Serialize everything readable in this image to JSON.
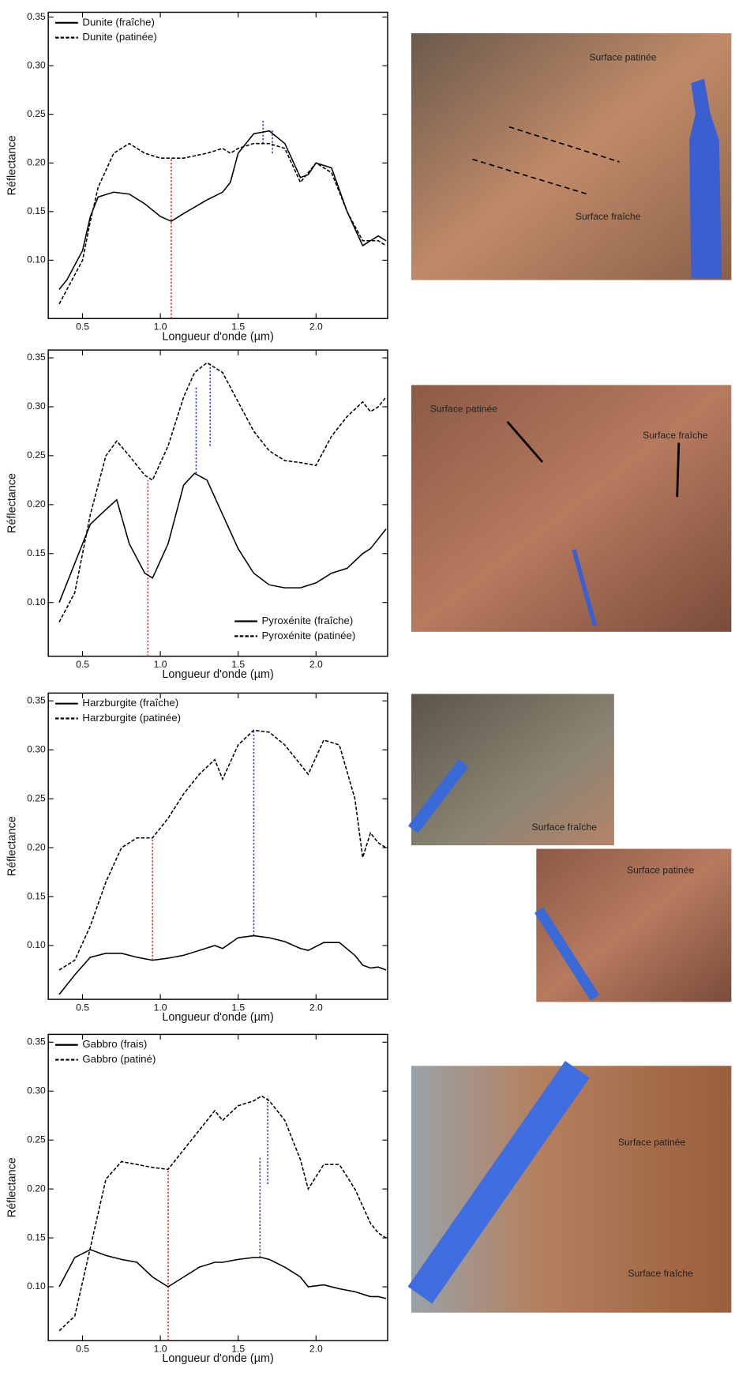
{
  "chart_data": [
    {
      "type": "line",
      "xlabel": "Longueur d'onde (µm)",
      "ylabel": "Réflectance",
      "legend": "upper left",
      "xlim": [
        0.28,
        2.46
      ],
      "ylim": [
        0.04,
        0.355
      ],
      "xticks": [
        0.5,
        {
          "value": 1.0,
          "label": "1.0"
        },
        1.5,
        {
          "value": 2.0,
          "label": "2.0"
        }
      ],
      "yticks": [
        {
          "value": 0.1,
          "label": "0.10"
        },
        {
          "value": 0.15,
          "label": "0.15"
        },
        {
          "value": 0.2,
          "label": "0.20"
        },
        {
          "value": 0.25,
          "label": "0.25"
        },
        {
          "value": 0.3,
          "label": "0.30"
        },
        {
          "value": 0.35,
          "label": "0.35"
        }
      ],
      "x": [
        0.35,
        0.4,
        0.5,
        0.55,
        0.6,
        0.7,
        0.8,
        0.9,
        1.0,
        1.07,
        1.15,
        1.3,
        1.4,
        1.45,
        1.5,
        1.6,
        1.7,
        1.8,
        1.9,
        1.95,
        2.0,
        2.1,
        2.2,
        2.3,
        2.35,
        2.4,
        2.45
      ],
      "series": [
        {
          "name": "Dunite (fraîche)",
          "color": "#000000",
          "dashed": false,
          "values": [
            0.07,
            0.08,
            0.11,
            0.145,
            0.165,
            0.17,
            0.168,
            0.158,
            0.145,
            0.14,
            0.148,
            0.162,
            0.17,
            0.18,
            0.21,
            0.23,
            0.233,
            0.22,
            0.185,
            0.188,
            0.2,
            0.195,
            0.15,
            0.115,
            0.12,
            0.125,
            0.12
          ]
        },
        {
          "name": "Dunite (patinée)",
          "color": "#000000",
          "dashed": true,
          "values": [
            0.055,
            0.07,
            0.1,
            0.14,
            0.175,
            0.21,
            0.22,
            0.21,
            0.205,
            0.205,
            0.205,
            0.21,
            0.215,
            0.21,
            0.215,
            0.22,
            0.22,
            0.215,
            0.18,
            0.19,
            0.2,
            0.19,
            0.15,
            0.12,
            0.12,
            0.12,
            0.115
          ]
        }
      ],
      "markers": [
        {
          "x": 1.07,
          "y": [
            0.04,
            0.205
          ],
          "color": "#e03030"
        },
        {
          "x": 1.66,
          "y": [
            0.22,
            0.245
          ],
          "color": "#3040e0"
        },
        {
          "x": 1.72,
          "y": [
            0.21,
            0.235
          ],
          "color": "#3040e0"
        }
      ]
    },
    {
      "type": "line",
      "xlabel": "Longueur d'onde (µm)",
      "ylabel": "Réflectance",
      "legend": "lower right",
      "xlim": [
        0.28,
        2.46
      ],
      "ylim": [
        0.045,
        0.358
      ],
      "xticks": [
        0.5,
        {
          "value": 1.0,
          "label": "1.0"
        },
        1.5,
        {
          "value": 2.0,
          "label": "2.0"
        }
      ],
      "yticks": [
        {
          "value": 0.1,
          "label": "0.10"
        },
        {
          "value": 0.15,
          "label": "0.15"
        },
        {
          "value": 0.2,
          "label": "0.20"
        },
        {
          "value": 0.25,
          "label": "0.25"
        },
        {
          "value": 0.3,
          "label": "0.30"
        },
        {
          "value": 0.35,
          "label": "0.35"
        }
      ],
      "x": [
        0.35,
        0.45,
        0.55,
        0.65,
        0.72,
        0.8,
        0.9,
        0.95,
        1.05,
        1.15,
        1.22,
        1.3,
        1.4,
        1.5,
        1.6,
        1.7,
        1.8,
        1.9,
        2.0,
        2.1,
        2.2,
        2.3,
        2.35,
        2.4,
        2.45
      ],
      "series": [
        {
          "name": "Pyroxénite (fraîche)",
          "color": "#000000",
          "dashed": false,
          "values": [
            0.1,
            0.14,
            0.18,
            0.195,
            0.205,
            0.16,
            0.13,
            0.125,
            0.16,
            0.22,
            0.232,
            0.225,
            0.19,
            0.155,
            0.13,
            0.118,
            0.115,
            0.115,
            0.12,
            0.13,
            0.135,
            0.15,
            0.155,
            0.165,
            0.175
          ]
        },
        {
          "name": "Pyroxénite (patinée)",
          "color": "#000000",
          "dashed": true,
          "values": [
            0.08,
            0.11,
            0.19,
            0.25,
            0.265,
            0.25,
            0.23,
            0.225,
            0.26,
            0.31,
            0.335,
            0.345,
            0.335,
            0.305,
            0.275,
            0.255,
            0.245,
            0.243,
            0.24,
            0.27,
            0.29,
            0.305,
            0.295,
            0.3,
            0.31
          ]
        }
      ],
      "markers": [
        {
          "x": 0.92,
          "y": [
            0.045,
            0.225
          ],
          "color": "#e03030"
        },
        {
          "x": 1.23,
          "y": [
            0.232,
            0.32
          ],
          "color": "#3040e0"
        },
        {
          "x": 1.32,
          "y": [
            0.26,
            0.345
          ],
          "color": "#3040e0"
        }
      ]
    },
    {
      "type": "line",
      "xlabel": "Longueur d'onde (µm)",
      "ylabel": "Réflectance",
      "legend": "upper left",
      "xlim": [
        0.28,
        2.46
      ],
      "ylim": [
        0.045,
        0.358
      ],
      "xticks": [
        0.5,
        {
          "value": 1.0,
          "label": "1.0"
        },
        1.5,
        {
          "value": 2.0,
          "label": "2.0"
        }
      ],
      "yticks": [
        {
          "value": 0.1,
          "label": "0.10"
        },
        {
          "value": 0.15,
          "label": "0.15"
        },
        {
          "value": 0.2,
          "label": "0.20"
        },
        {
          "value": 0.25,
          "label": "0.25"
        },
        {
          "value": 0.3,
          "label": "0.30"
        },
        {
          "value": 0.35,
          "label": "0.35"
        }
      ],
      "x": [
        0.35,
        0.45,
        0.55,
        0.65,
        0.75,
        0.85,
        0.95,
        1.05,
        1.15,
        1.25,
        1.35,
        1.4,
        1.5,
        1.6,
        1.7,
        1.8,
        1.9,
        1.95,
        2.05,
        2.15,
        2.25,
        2.3,
        2.35,
        2.4,
        2.45
      ],
      "series": [
        {
          "name": "Harzburgite (fraîche)",
          "color": "#000000",
          "dashed": false,
          "values": [
            0.05,
            0.07,
            0.088,
            0.092,
            0.092,
            0.088,
            0.085,
            0.087,
            0.09,
            0.095,
            0.1,
            0.097,
            0.108,
            0.11,
            0.108,
            0.104,
            0.097,
            0.095,
            0.103,
            0.103,
            0.09,
            0.08,
            0.077,
            0.078,
            0.075
          ]
        },
        {
          "name": "Harzburgite (patinée)",
          "color": "#000000",
          "dashed": true,
          "values": [
            0.075,
            0.085,
            0.12,
            0.165,
            0.2,
            0.21,
            0.21,
            0.23,
            0.255,
            0.275,
            0.29,
            0.27,
            0.305,
            0.32,
            0.318,
            0.305,
            0.285,
            0.275,
            0.31,
            0.305,
            0.25,
            0.19,
            0.215,
            0.205,
            0.2
          ]
        }
      ],
      "markers": [
        {
          "x": 0.95,
          "y": [
            0.085,
            0.21
          ],
          "color": "#e03030"
        },
        {
          "x": 1.6,
          "y": [
            0.11,
            0.32
          ],
          "color": "#3040e0"
        }
      ]
    },
    {
      "type": "line",
      "xlabel": "Longueur d'onde (µm)",
      "ylabel": "Réflectance",
      "legend": "upper left",
      "xlim": [
        0.28,
        2.46
      ],
      "ylim": [
        0.045,
        0.358
      ],
      "xticks": [
        0.5,
        {
          "value": 1.0,
          "label": "1.0"
        },
        1.5,
        {
          "value": 2.0,
          "label": "2.0"
        }
      ],
      "yticks": [
        {
          "value": 0.1,
          "label": "0.10"
        },
        {
          "value": 0.15,
          "label": "0.15"
        },
        {
          "value": 0.2,
          "label": "0.20"
        },
        {
          "value": 0.25,
          "label": "0.25"
        },
        {
          "value": 0.3,
          "label": "0.30"
        },
        {
          "value": 0.35,
          "label": "0.35"
        }
      ],
      "x": [
        0.35,
        0.45,
        0.55,
        0.65,
        0.75,
        0.85,
        0.95,
        1.05,
        1.15,
        1.25,
        1.35,
        1.4,
        1.5,
        1.6,
        1.65,
        1.7,
        1.8,
        1.9,
        1.95,
        2.05,
        2.15,
        2.25,
        2.35,
        2.4,
        2.45
      ],
      "series": [
        {
          "name": "Gabbro (frais)",
          "color": "#000000",
          "dashed": false,
          "values": [
            0.1,
            0.13,
            0.138,
            0.132,
            0.128,
            0.125,
            0.11,
            0.1,
            0.11,
            0.12,
            0.125,
            0.125,
            0.128,
            0.13,
            0.13,
            0.128,
            0.12,
            0.11,
            0.1,
            0.102,
            0.098,
            0.095,
            0.09,
            0.09,
            0.088
          ]
        },
        {
          "name": "Gabbro (patiné)",
          "color": "#000000",
          "dashed": true,
          "values": [
            0.055,
            0.07,
            0.14,
            0.21,
            0.228,
            0.225,
            0.222,
            0.22,
            0.24,
            0.26,
            0.28,
            0.27,
            0.285,
            0.29,
            0.295,
            0.29,
            0.27,
            0.23,
            0.2,
            0.225,
            0.225,
            0.2,
            0.165,
            0.155,
            0.15
          ]
        }
      ],
      "markers": [
        {
          "x": 1.05,
          "y": [
            0.045,
            0.22
          ],
          "color": "#e03030"
        },
        {
          "x": 1.64,
          "y": [
            0.13,
            0.232
          ],
          "color": "#3040e0"
        },
        {
          "x": 1.69,
          "y": [
            0.205,
            0.295
          ],
          "color": "#3040e0"
        }
      ]
    }
  ],
  "photos": [
    {
      "labels": [
        "Surface patinée",
        "Surface fraîche"
      ]
    },
    {
      "labels": [
        "Surface patinée",
        "Surface fraîche"
      ]
    },
    {
      "labels": [
        "Surface fraîche"
      ]
    },
    {
      "labels": [
        "Surface patinée"
      ]
    },
    {
      "labels": [
        "Surface patinée",
        "Surface fraîche"
      ]
    }
  ]
}
